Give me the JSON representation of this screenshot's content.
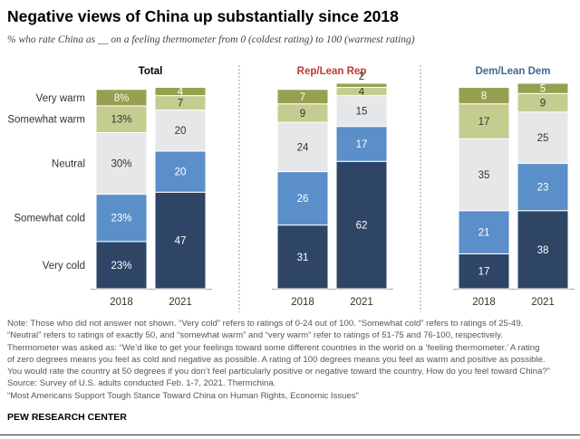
{
  "title": "Negative views of China up substantially since 2018",
  "subtitle": "% who rate China as __ on a feeling thermometer from 0 (coldest rating) to 100 (warmest rating)",
  "chart_data": {
    "type": "bar",
    "stacked": true,
    "categories": [
      "2018",
      "2021"
    ],
    "legend_labels": [
      "Very cold",
      "Somewhat cold",
      "Neutral",
      "Somewhat warm",
      "Very warm"
    ],
    "colors": [
      "#2e4566",
      "#5b8fc9",
      "#e6e7e8",
      "#c5cc90",
      "#96a050"
    ],
    "ylim": [
      0,
      100
    ],
    "panels": [
      {
        "title": "Total",
        "title_color": "#000000",
        "series": [
          {
            "name": "Very cold",
            "values": [
              23,
              47
            ],
            "labels": [
              "23%",
              "47"
            ]
          },
          {
            "name": "Somewhat cold",
            "values": [
              23,
              20
            ],
            "labels": [
              "23%",
              "20"
            ]
          },
          {
            "name": "Neutral",
            "values": [
              30,
              20
            ],
            "labels": [
              "30%",
              "20"
            ]
          },
          {
            "name": "Somewhat warm",
            "values": [
              13,
              7
            ],
            "labels": [
              "13%",
              "7"
            ]
          },
          {
            "name": "Very warm",
            "values": [
              8,
              4
            ],
            "labels": [
              "8%",
              "4"
            ]
          }
        ]
      },
      {
        "title": "Rep/Lean Rep",
        "title_color": "#bf3b2f",
        "series": [
          {
            "name": "Very cold",
            "values": [
              31,
              62
            ],
            "labels": [
              "31",
              "62"
            ]
          },
          {
            "name": "Somewhat cold",
            "values": [
              26,
              17
            ],
            "labels": [
              "26",
              "17"
            ]
          },
          {
            "name": "Neutral",
            "values": [
              24,
              15
            ],
            "labels": [
              "24",
              "15"
            ]
          },
          {
            "name": "Somewhat warm",
            "values": [
              9,
              4
            ],
            "labels": [
              "9",
              "4"
            ]
          },
          {
            "name": "Very warm",
            "values": [
              7,
              2
            ],
            "labels": [
              "7",
              "2"
            ]
          }
        ]
      },
      {
        "title": "Dem/Lean Dem",
        "title_color": "#3d6a93",
        "series": [
          {
            "name": "Very cold",
            "values": [
              17,
              38
            ],
            "labels": [
              "17",
              "38"
            ]
          },
          {
            "name": "Somewhat cold",
            "values": [
              21,
              23
            ],
            "labels": [
              "21",
              "23"
            ]
          },
          {
            "name": "Neutral",
            "values": [
              35,
              25
            ],
            "labels": [
              "35",
              "25"
            ]
          },
          {
            "name": "Somewhat warm",
            "values": [
              17,
              9
            ],
            "labels": [
              "17",
              "9"
            ]
          },
          {
            "name": "Very warm",
            "values": [
              8,
              5
            ],
            "labels": [
              "8",
              "5"
            ]
          }
        ]
      }
    ]
  },
  "notes": [
    "Note: Those who did not answer not shown. “Very cold” refers to ratings of 0-24 out of 100. “Somewhat cold” refers to ratings of 25-49.",
    "“Neutral” refers to ratings of exactly 50, and “somewhat warm” and “very warm” refer to ratings of 51-75 and 76-100, respectively.",
    "Thermometer was asked as: “We’d like to get your feelings toward some different countries in the world on a ‘feeling thermometer.’ A rating",
    "of zero degrees means you feel as cold and negative as possible. A rating of 100 degrees means you feel as warm and positive as possible.",
    "You would rate the country at 50 degrees if you don’t feel particularly positive or negative toward the country. How do you feel toward China?”",
    "Source: Survey of U.S. adults conducted Feb. 1-7, 2021. Thermchina.",
    "“Most Americans Support Tough Stance Toward China on Human Rights, Economic Issues”"
  ],
  "brand": "PEW RESEARCH CENTER"
}
